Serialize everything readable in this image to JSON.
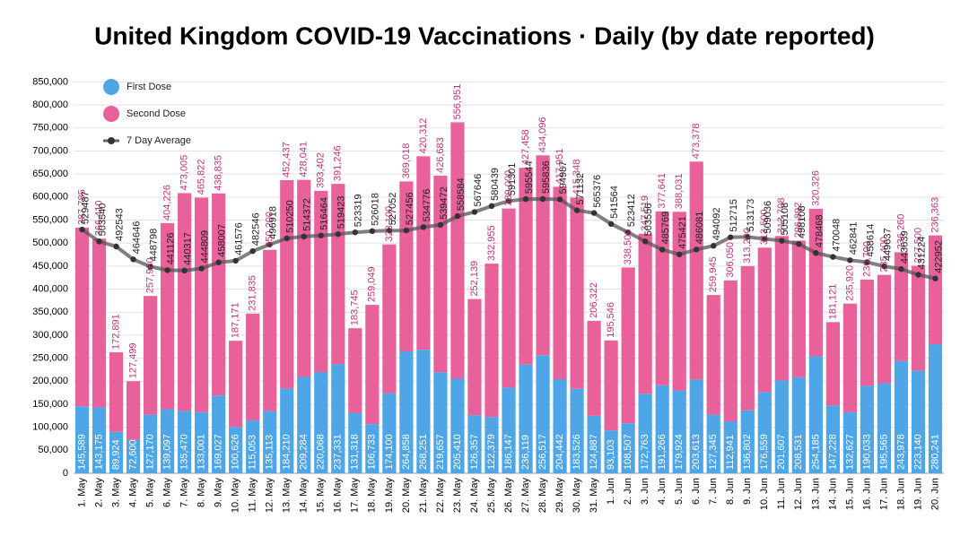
{
  "chart_data": {
    "type": "bar",
    "stacked": true,
    "title": "United Kingdom COVID-19 Vaccinations · Daily (by date reported)",
    "categories": [
      "1. May",
      "2. May",
      "3. May",
      "4. May",
      "5. May",
      "6. May",
      "7. May",
      "8. May",
      "9. May",
      "10. May",
      "11. May",
      "12. May",
      "13. May",
      "14. May",
      "15. May",
      "16. May",
      "17. May",
      "18. May",
      "19. May",
      "20. May",
      "21. May",
      "22. May",
      "23. May",
      "24. May",
      "25. May",
      "26. May",
      "27. May",
      "28. May",
      "29. May",
      "30. May",
      "31. May",
      "1. Jun",
      "2. Jun",
      "3. Jun",
      "4. Jun",
      "5. Jun",
      "6. Jun",
      "7. Jun",
      "8. Jun",
      "9. Jun",
      "10. Jun",
      "11. Jun",
      "12. Jun",
      "13. Jun",
      "14. Jun",
      "15. Jun",
      "16. Jun",
      "17. Jun",
      "18. Jun",
      "19. Jun",
      "20. Jun"
    ],
    "series": [
      {
        "name": "First Dose",
        "color": "#4fa6e6",
        "values": [
          145589,
          143175,
          89924,
          72600,
          127170,
          139097,
          135470,
          133001,
          169027,
          100626,
          115053,
          135113,
          184210,
          209284,
          220068,
          237331,
          131318,
          106733,
          174100,
          264858,
          268251,
          219657,
          205410,
          126357,
          122379,
          186147,
          236119,
          256517,
          204442,
          183526,
          124887,
          93103,
          108507,
          172763,
          191266,
          179924,
          203613,
          127345,
          112941,
          136802,
          176559,
          201607,
          208531,
          254185,
          147228,
          132627,
          190033,
          195565,
          243978,
          223140,
          280241
        ],
        "value_labels": [
          "145,589",
          "143,175",
          "89,924",
          "72,600",
          "127,170",
          "139,097",
          "135,470",
          "133,001",
          "169,027",
          "100,626",
          "115,053",
          "135,113",
          "184,210",
          "209,284",
          "220,068",
          "237,331",
          "131,318",
          "106,733",
          "174,100",
          "264,858",
          "268,251",
          "219,657",
          "205,410",
          "126,357",
          "122,379",
          "186,147",
          "236,119",
          "256,517",
          "204,442",
          "183,526",
          "124,887",
          "93,103",
          "108,507",
          "172,763",
          "191,266",
          "179,924",
          "203,613",
          "127,345",
          "112,941",
          "136,802",
          "176,559",
          "201,607",
          "208,531",
          "254,185",
          "147,228",
          "132,627",
          "190,033",
          "195,565",
          "243,978",
          "223,140",
          "280,241"
        ]
      },
      {
        "name": "Second Dose",
        "color": "#e8619b",
        "values": [
          387785,
          366410,
          172891,
          127499,
          257980,
          404226,
          473005,
          465822,
          438835,
          187171,
          231835,
          350200,
          452437,
          428041,
          393402,
          391246,
          183745,
          259049,
          323100,
          369018,
          420312,
          426683,
          556951,
          252139,
          332955,
          389000,
          427458,
          434096,
          417951,
          415348,
          206322,
          195546,
          338500,
          347519,
          377641,
          388031,
          473378,
          259945,
          306050,
          313200,
          313500,
          313708,
          296892,
          320326,
          181121,
          235920,
          230700,
          235400,
          236260,
          227500,
          236363
        ],
        "value_labels": [
          "387,785",
          "366,410",
          "172,891",
          "127,499",
          "257,980",
          "404,226",
          "473,005",
          "465,822",
          "438,835",
          "187,171",
          "231,835",
          "350,200",
          "452,437",
          "428,041",
          "393,402",
          "391,246",
          "183,745",
          "259,049",
          "323,100",
          "369,018",
          "420,312",
          "426,683",
          "556,951",
          "252,139",
          "332,955",
          "389,000",
          "427,458",
          "434,096",
          "417,951",
          "415,348",
          "206,322",
          "195,546",
          "338,500",
          "347,519",
          "377,641",
          "388,031",
          "473,378",
          "259,945",
          "306,050",
          "313,200",
          "313,500",
          "313,708",
          "296,892",
          "320,326",
          "181,121",
          "235,920",
          "230,700",
          "235,400",
          "236,260",
          "227,500",
          "236,363"
        ]
      },
      {
        "name": "7 Day Average",
        "type": "line",
        "color": "#333333",
        "values": [
          529487,
          503540,
          492543,
          464646,
          448798,
          441126,
          440317,
          444809,
          458007,
          461576,
          482546,
          496918,
          510250,
          514372,
          516464,
          519423,
          523319,
          526018,
          527052,
          527456,
          534776,
          539472,
          558584,
          567646,
          580439,
          591301,
          595544,
          595836,
          594987,
          571132,
          565376,
          541564,
          523412,
          503556,
          485769,
          475421,
          486081,
          494092,
          512715,
          513173,
          509036,
          505108,
          498108,
          478468,
          470048,
          462841,
          458614,
          449637,
          443639,
          431224,
          422952
        ]
      }
    ],
    "ylim": [
      0,
      880000
    ],
    "yticks": [
      0,
      {
        "value": 50000,
        "label": "50,000"
      },
      {
        "value": 100000,
        "label": "100,000"
      },
      {
        "value": 150000,
        "label": "150,000"
      },
      {
        "value": 200000,
        "label": "200,000"
      },
      {
        "value": 250000,
        "label": "250,000"
      },
      {
        "value": 300000,
        "label": "300,000"
      },
      {
        "value": 350000,
        "label": "350,000"
      },
      {
        "value": 400000,
        "label": "400,000"
      },
      {
        "value": 450000,
        "label": "450,000"
      },
      {
        "value": 500000,
        "label": "500,000"
      },
      {
        "value": 550000,
        "label": "550,000"
      },
      {
        "value": 600000,
        "label": "600,000"
      },
      {
        "value": 650000,
        "label": "650,000"
      },
      {
        "value": 700000,
        "label": "700,000"
      },
      {
        "value": 750000,
        "label": "750,000"
      },
      {
        "value": 800000,
        "label": "800,000"
      },
      {
        "value": 850000,
        "label": "850,000"
      }
    ],
    "grid": true,
    "legend": "top-left"
  }
}
